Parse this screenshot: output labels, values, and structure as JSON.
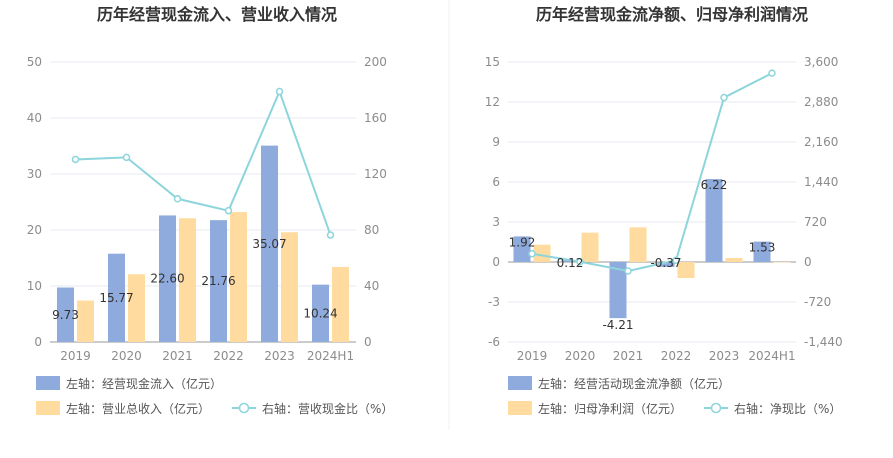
{
  "colors": {
    "bar_primary": "#8faadc",
    "bar_secondary": "#ffdba0",
    "line": "#8dd5dc",
    "grid": "#e5e8f0",
    "tick_text": "#8c8c8c",
    "title_text": "#333333"
  },
  "chart_data": [
    {
      "type": "bar",
      "title": "历年经营现金流入、营业收入情况",
      "categories": [
        "2019",
        "2020",
        "2021",
        "2022",
        "2023",
        "2024H1"
      ],
      "left_axis": {
        "ticks": [
          "0",
          "10",
          "20",
          "30",
          "40",
          "50"
        ],
        "ylim": [
          0,
          50
        ]
      },
      "right_axis": {
        "ticks": [
          "0",
          "40",
          "80",
          "120",
          "160",
          "200"
        ],
        "ylim": [
          0,
          200
        ]
      },
      "series": [
        {
          "name": "左轴：经营现金流入（亿元）",
          "kind": "bar",
          "axis": "left",
          "color": "#8faadc",
          "values": [
            9.73,
            15.77,
            22.6,
            21.76,
            35.07,
            10.24
          ],
          "labels": [
            "9.73",
            "15.77",
            "22.60",
            "21.76",
            "35.07",
            "10.24"
          ]
        },
        {
          "name": "左轴：营业总收入（亿元）",
          "kind": "bar",
          "axis": "left",
          "color": "#ffdba0",
          "values": [
            7.4,
            12.1,
            22.1,
            23.2,
            19.6,
            13.4
          ]
        },
        {
          "name": "右轴：营收现金比（%）",
          "kind": "line",
          "axis": "right",
          "color": "#8dd5dc",
          "values": [
            130.4,
            131.9,
            102.3,
            93.8,
            178.9,
            76.4
          ]
        }
      ],
      "grid": true,
      "legend": "bottom-left"
    },
    {
      "type": "bar",
      "title": "历年经营现金流净额、归母净利润情况",
      "categories": [
        "2019",
        "2020",
        "2021",
        "2022",
        "2023",
        "2024H1"
      ],
      "left_axis": {
        "ticks": [
          "-6",
          "-3",
          "0",
          "3",
          "6",
          "9",
          "12",
          "15"
        ],
        "ylim": [
          -6,
          15
        ]
      },
      "right_axis": {
        "ticks": [
          "-1,440",
          "-720",
          "0",
          "720",
          "1,440",
          "2,160",
          "2,880",
          "3,600"
        ],
        "ylim": [
          -1440,
          3600
        ]
      },
      "series": [
        {
          "name": "左轴：经营活动现金流净额（亿元）",
          "kind": "bar",
          "axis": "left",
          "color": "#8faadc",
          "values": [
            1.92,
            0.12,
            -4.21,
            -0.37,
            6.22,
            1.53
          ],
          "labels": [
            "1.92",
            "0.12",
            "-4.21",
            "-0.37",
            "6.22",
            "1.53"
          ]
        },
        {
          "name": "左轴：归母净利润（亿元）",
          "kind": "bar",
          "axis": "left",
          "color": "#ffdba0",
          "values": [
            1.3,
            2.2,
            2.6,
            -1.2,
            0.3,
            0.0
          ]
        },
        {
          "name": "右轴：净现比（%）",
          "kind": "line",
          "axis": "right",
          "color": "#8dd5dc",
          "values": [
            148,
            5,
            -162,
            31,
            2960,
            3400
          ]
        }
      ],
      "grid": true,
      "legend": "bottom-left"
    }
  ]
}
